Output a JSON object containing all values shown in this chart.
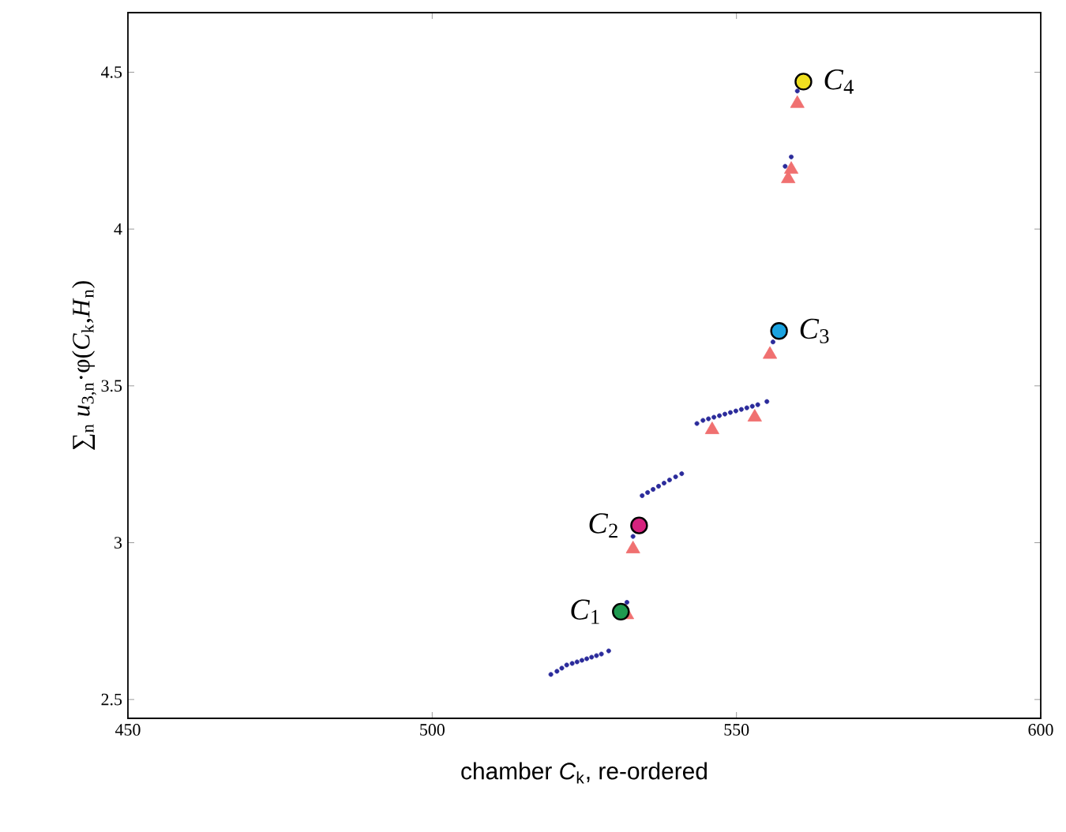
{
  "chart_data": {
    "type": "scatter",
    "xlabel": "chamber *C*$_{k}$, re-ordered",
    "ylabel": "∑$_{n}$ *u*$_{3,n}$·φ(*C*$_{k}$,*H*$_{n}$)",
    "xlim": [
      450,
      600
    ],
    "ylim": [
      2.44,
      4.69
    ],
    "xticks": [
      450,
      500,
      550,
      600
    ],
    "yticks": [
      2.5,
      3,
      3.5,
      4,
      4.5
    ],
    "series": [
      {
        "color": "#2b2b9b",
        "marker": "circle",
        "x": [
          519.5,
          520.5,
          521.3,
          522.1,
          523,
          523.8,
          524.6,
          525.4,
          526.2,
          527,
          527.8,
          529,
          532,
          533,
          534.5,
          535.4,
          536.3,
          537.2,
          538.1,
          539,
          540,
          541,
          543.5,
          544.5,
          545.4,
          546.3,
          547.2,
          548.1,
          549,
          549.9,
          550.8,
          551.7,
          552.6,
          553.5,
          555,
          556,
          558,
          559,
          560
        ],
        "values": [
          2.58,
          2.59,
          2.6,
          2.61,
          2.615,
          2.62,
          2.625,
          2.63,
          2.635,
          2.64,
          2.645,
          2.655,
          2.81,
          3.02,
          3.15,
          3.16,
          3.17,
          3.18,
          3.19,
          3.2,
          3.21,
          3.22,
          3.38,
          3.39,
          3.395,
          3.4,
          3.405,
          3.41,
          3.415,
          3.42,
          3.425,
          3.43,
          3.435,
          3.44,
          3.45,
          3.64,
          4.2,
          4.23,
          4.44
        ]
      },
      {
        "color": "#f07070",
        "marker": "triangle",
        "x": [
          532,
          533,
          546,
          553,
          555.5,
          558.5,
          559,
          560
        ],
        "values": [
          2.77,
          2.98,
          3.36,
          3.4,
          3.6,
          4.16,
          4.19,
          4.4
        ]
      },
      {
        "color": "#000000",
        "marker": "circle",
        "x": [
          531,
          534,
          557,
          561
        ],
        "values": [
          2.78,
          3.055,
          3.675,
          4.47
        ],
        "colors": [
          "#1f9a50",
          "#d6237e",
          "#1aa3e0",
          "#f0e020"
        ]
      }
    ],
    "annotations": [
      {
        "text": "*C*$_{1}$",
        "x": 531,
        "y": 2.78
      },
      {
        "text": "*C*$_{2}$",
        "x": 534,
        "y": 3.055
      },
      {
        "text": "*C*$_{3}$",
        "x": 557,
        "y": 3.675
      },
      {
        "text": "*C*$_{4}$",
        "x": 561,
        "y": 4.47
      }
    ]
  }
}
